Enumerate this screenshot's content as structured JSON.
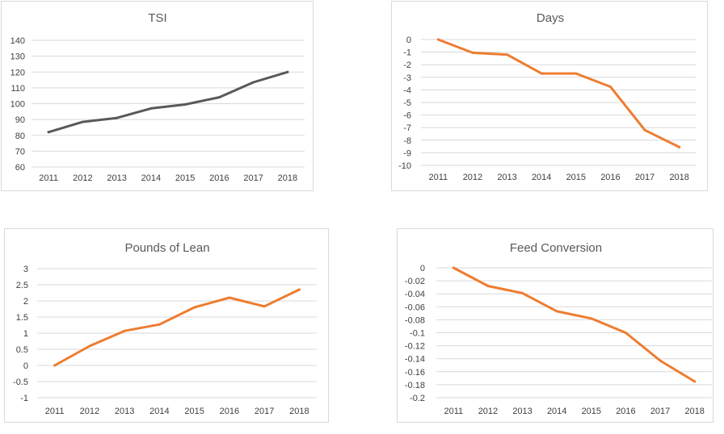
{
  "chart_data": [
    {
      "type": "line",
      "title": "TSI",
      "categories": [
        "2011",
        "2012",
        "2013",
        "2014",
        "2015",
        "2016",
        "2017",
        "2018"
      ],
      "series": [
        {
          "name": "TSI",
          "values": [
            82,
            88.5,
            91,
            97,
            99.5,
            104,
            113.5,
            120
          ]
        }
      ],
      "yticks": [
        "60",
        "70",
        "80",
        "90",
        "100",
        "110",
        "120",
        "130",
        "140"
      ],
      "ylim": [
        60,
        140
      ],
      "color": "#595959",
      "grid": true
    },
    {
      "type": "line",
      "title": "Days",
      "categories": [
        "2011",
        "2012",
        "2013",
        "2014",
        "2015",
        "2016",
        "2017",
        "2018"
      ],
      "series": [
        {
          "name": "Days",
          "values": [
            0,
            -1.05,
            -1.2,
            -2.7,
            -2.7,
            -3.75,
            -7.2,
            -8.55
          ]
        }
      ],
      "yticks": [
        "0",
        "-1",
        "-2",
        "-3",
        "-4",
        "-5",
        "-6",
        "-7",
        "-8",
        "-9",
        "-10"
      ],
      "ylim": [
        -10,
        0
      ],
      "color": "#ed7d31",
      "grid": true
    },
    {
      "type": "line",
      "title": "Pounds of Lean",
      "categories": [
        "2011",
        "2012",
        "2013",
        "2014",
        "2015",
        "2016",
        "2017",
        "2018"
      ],
      "series": [
        {
          "name": "Pounds of Lean",
          "values": [
            0,
            0.6,
            1.07,
            1.27,
            1.8,
            2.1,
            1.83,
            2.35
          ]
        }
      ],
      "yticks": [
        "3",
        "2.5",
        "2",
        "1.5",
        "1",
        "0.5",
        "0",
        "-0.5",
        "-1"
      ],
      "ylim": [
        -1,
        3
      ],
      "color": "#ed7d31",
      "grid": true
    },
    {
      "type": "line",
      "title": "Feed Conversion",
      "categories": [
        "2011",
        "2012",
        "2013",
        "2014",
        "2015",
        "2016",
        "2017",
        "2018"
      ],
      "series": [
        {
          "name": "Feed Conversion",
          "values": [
            0,
            -0.028,
            -0.039,
            -0.067,
            -0.078,
            -0.1,
            -0.143,
            -0.175
          ]
        }
      ],
      "yticks": [
        "0",
        "-0.02",
        "-0.04",
        "-0.06",
        "-0.08",
        "-0.1",
        "-0.12",
        "-0.14",
        "-0.16",
        "-0.18",
        "-0.2"
      ],
      "ylim": [
        -0.2,
        0
      ],
      "color": "#ed7d31",
      "grid": true
    }
  ]
}
